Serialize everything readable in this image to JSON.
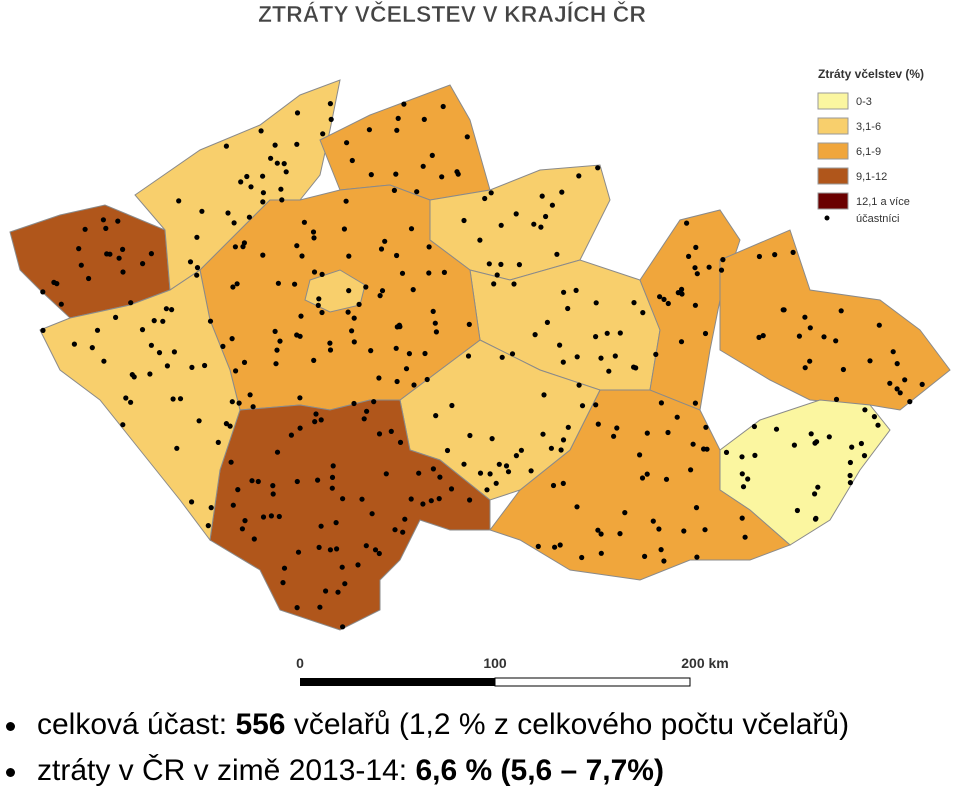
{
  "header": {
    "title": "ZTRÁTY VČELSTEV V KRAJÍCH ČR"
  },
  "legend": {
    "title": "Ztráty včelstev (%)",
    "items": [
      {
        "label": "0-3",
        "color": "#fbf6a0"
      },
      {
        "label": "3,1-6",
        "color": "#f8cf6c"
      },
      {
        "label": "6,1-9",
        "color": "#f0a63c"
      },
      {
        "label": "9,1-12",
        "color": "#b0561b"
      },
      {
        "label": "12,1 a více",
        "color": "#6a0000"
      }
    ],
    "participants": "účastníci"
  },
  "scale": {
    "labels": [
      "0",
      "100",
      "200 km"
    ]
  },
  "bullets": [
    {
      "parts": [
        {
          "text": "celková účast: ",
          "bold": false
        },
        {
          "text": "556",
          "bold": true
        },
        {
          "text": " včelařů (1,2 % z celkového počtu včelařů)",
          "bold": false
        }
      ]
    },
    {
      "parts": [
        {
          "text": "ztráty v ČR v zimě 2013-14: ",
          "bold": false
        },
        {
          "text": "6,6 % (5,6 – 7,7%)",
          "bold": true
        }
      ]
    }
  ]
}
